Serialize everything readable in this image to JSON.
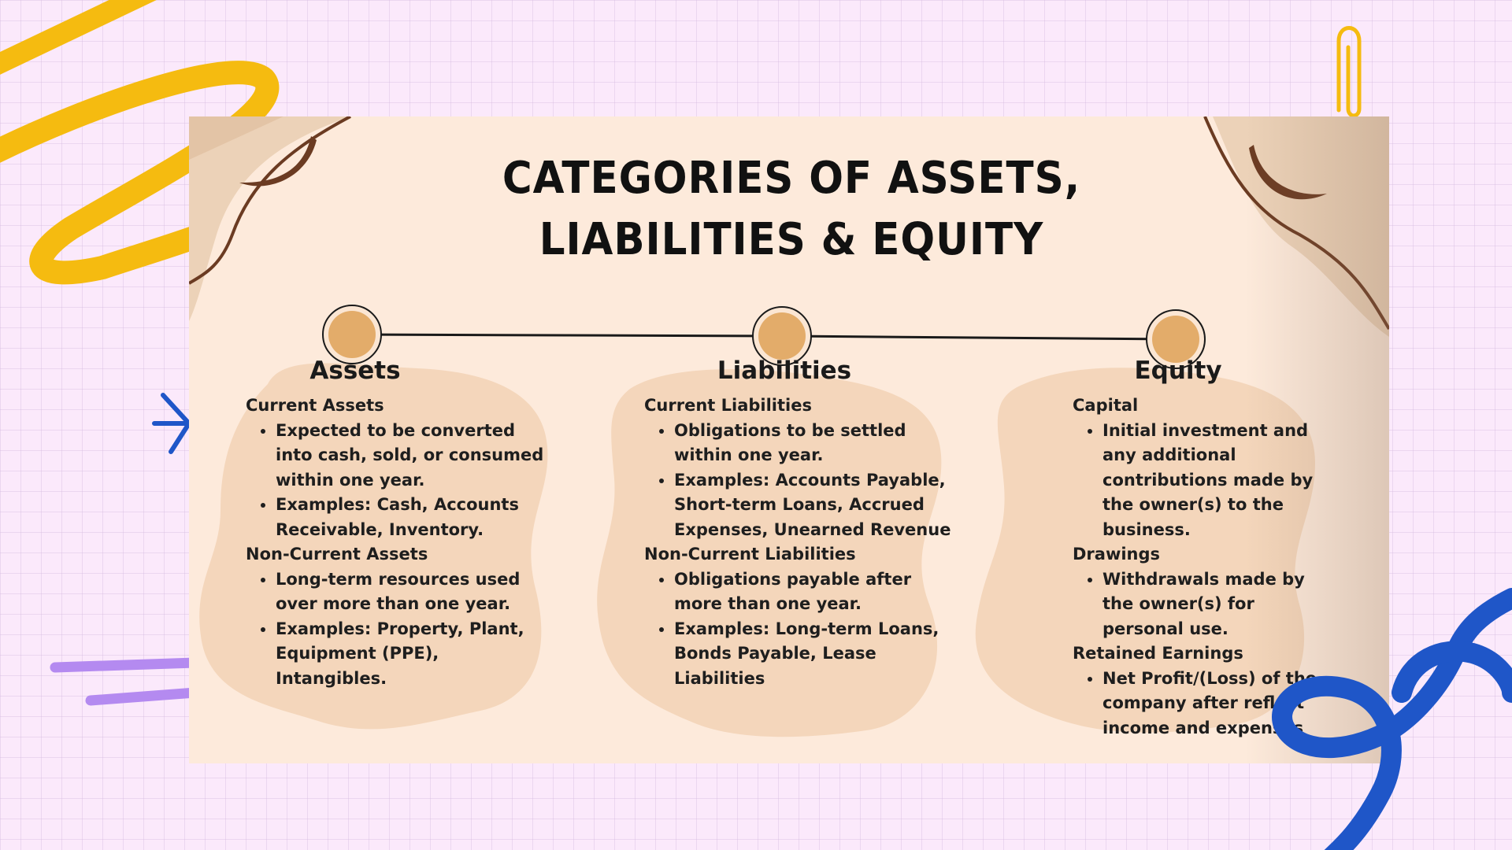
{
  "title": "Categories of Assets, Liabilities & Equity",
  "columns": [
    {
      "heading": "Assets",
      "groups": [
        {
          "label": "Current Assets",
          "points": [
            "Expected to be converted into cash, sold, or consumed within one year.",
            "Examples: Cash, Accounts Receivable, Inventory."
          ]
        },
        {
          "label": "Non-Current Assets",
          "points": [
            "Long-term resources used over more than one year.",
            "Examples: Property, Plant, Equipment (PPE), Intangibles."
          ]
        }
      ]
    },
    {
      "heading": "Liabilities",
      "groups": [
        {
          "label": "Current Liabilities",
          "points": [
            "Obligations to be settled within one year.",
            "Examples: Accounts Payable, Short-term Loans, Accrued Expenses, Unearned Revenue"
          ]
        },
        {
          "label": "Non-Current Liabilities",
          "points": [
            "Obligations payable after more than one year.",
            "Examples: Long-term Loans, Bonds Payable, Lease Liabilities"
          ]
        }
      ]
    },
    {
      "heading": "Equity",
      "groups": [
        {
          "label": "Capital",
          "points": [
            "Initial investment and any additional contributions made by the owner(s) to the business."
          ]
        },
        {
          "label": "Drawings",
          "points": [
            "Withdrawals made by the owner(s) for personal use."
          ]
        },
        {
          "label": "Retained Earnings",
          "points": [
            "Net Profit/(Loss) of the company after reflect income and expenses"
          ]
        }
      ]
    }
  ],
  "colors": {
    "page_background": "#fbe9fb",
    "slide_background": "#fdeadb",
    "blob": "#f4d6bb",
    "timeline_node": "#e3ac6a",
    "curl_brown": "#6b3b22",
    "scribble_yellow": "#f5bb10",
    "spiral_blue": "#1f56c8",
    "lines_purple": "#b48af0"
  }
}
